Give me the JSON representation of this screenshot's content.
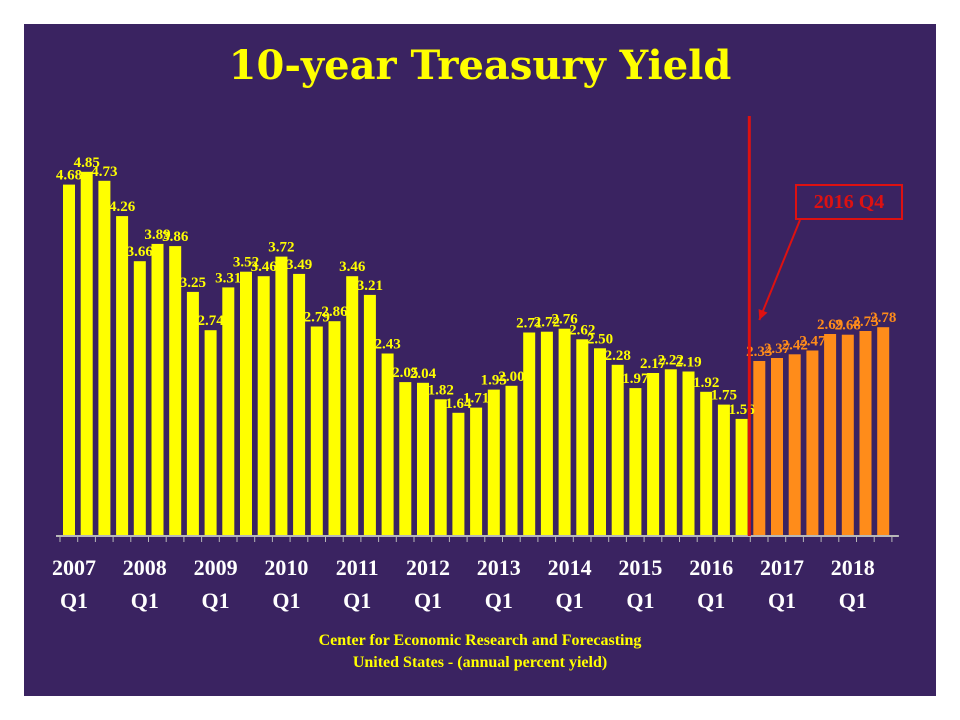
{
  "chart_data": {
    "type": "bar",
    "title": "10-year Treasury Yield",
    "subtitle_lines": [
      "Center for Economic Research and Forecasting",
      "United States - (annual percent yield)"
    ],
    "x_tick_labels": [
      {
        "year": "2007",
        "quarter": "Q1",
        "index": 0
      },
      {
        "year": "2008",
        "quarter": "Q1",
        "index": 4
      },
      {
        "year": "2009",
        "quarter": "Q1",
        "index": 8
      },
      {
        "year": "2010",
        "quarter": "Q1",
        "index": 12
      },
      {
        "year": "2011",
        "quarter": "Q1",
        "index": 16
      },
      {
        "year": "2012",
        "quarter": "Q1",
        "index": 20
      },
      {
        "year": "2013",
        "quarter": "Q1",
        "index": 24
      },
      {
        "year": "2014",
        "quarter": "Q1",
        "index": 28
      },
      {
        "year": "2015",
        "quarter": "Q1",
        "index": 32
      },
      {
        "year": "2016",
        "quarter": "Q1",
        "index": 36
      },
      {
        "year": "2017",
        "quarter": "Q1",
        "index": 40
      },
      {
        "year": "2018",
        "quarter": "Q1",
        "index": 44
      }
    ],
    "ylim": [
      0,
      5.3
    ],
    "grid": false,
    "legend": "none",
    "series": [
      {
        "kind": "actual",
        "color": "#ffff00",
        "values": [
          4.68,
          4.85,
          4.73,
          4.26,
          3.66,
          3.89,
          3.86,
          3.25,
          2.74,
          3.31,
          3.52,
          3.46,
          3.72,
          3.49,
          2.79,
          2.86,
          3.46,
          3.21,
          2.43,
          2.05,
          2.04,
          1.82,
          1.64,
          1.71,
          1.95,
          2.0,
          2.71,
          2.72,
          2.76,
          2.62,
          2.5,
          2.28,
          1.97,
          2.17,
          2.22,
          2.19,
          1.92,
          1.75,
          1.56
        ]
      },
      {
        "kind": "forecast",
        "color": "#ff8c1a",
        "values": [
          2.33,
          2.37,
          2.42,
          2.47,
          2.69,
          2.68,
          2.73,
          2.78
        ]
      }
    ],
    "annotation": {
      "text": "2016 Q4",
      "color": "#dd1111"
    }
  }
}
